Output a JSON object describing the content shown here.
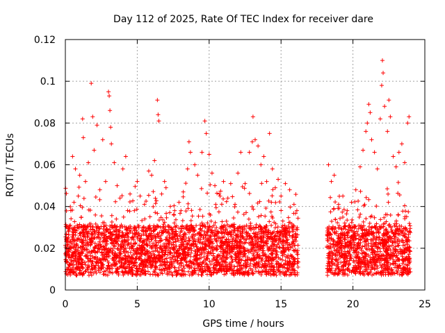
{
  "chart_data": {
    "type": "scatter",
    "title": "Day 112 of 2025, Rate Of TEC Index for receiver dare",
    "xlabel": "GPS time / hours",
    "ylabel": "ROTI / TECUs",
    "xlim": [
      0,
      25
    ],
    "ylim": [
      0,
      0.12
    ],
    "xticks": [
      0,
      5,
      10,
      15,
      20,
      25
    ],
    "xtick_labels": [
      "0",
      "5",
      "10",
      "15",
      "20",
      "25"
    ],
    "yticks": [
      0,
      0.02,
      0.04,
      0.06,
      0.08,
      0.1,
      0.12
    ],
    "ytick_labels": [
      "0",
      "0.02",
      "0.04",
      "0.06",
      "0.08",
      "0.1",
      "0.12"
    ],
    "grid": true,
    "marker": "+",
    "color": "#ff0000",
    "data_gap_hours": [
      16.2,
      18.2
    ],
    "series": [
      {
        "points": [
          [
            0.05,
            0.018
          ],
          [
            0.2,
            0.025
          ],
          [
            0.35,
            0.031
          ],
          [
            0.5,
            0.064
          ],
          [
            0.6,
            0.042
          ],
          [
            0.7,
            0.058
          ],
          [
            0.9,
            0.045
          ],
          [
            1.0,
            0.055
          ],
          [
            1.2,
            0.082
          ],
          [
            1.25,
            0.073
          ],
          [
            1.4,
            0.052
          ],
          [
            1.6,
            0.061
          ],
          [
            1.8,
            0.099
          ],
          [
            1.9,
            0.083
          ],
          [
            2.0,
            0.067
          ],
          [
            2.2,
            0.079
          ],
          [
            2.4,
            0.048
          ],
          [
            2.6,
            0.072
          ],
          [
            2.8,
            0.052
          ],
          [
            3.0,
            0.095
          ],
          [
            3.05,
            0.093
          ],
          [
            3.1,
            0.086
          ],
          [
            3.15,
            0.078
          ],
          [
            3.2,
            0.07
          ],
          [
            3.4,
            0.061
          ],
          [
            3.6,
            0.05
          ],
          [
            3.8,
            0.044
          ],
          [
            4.0,
            0.058
          ],
          [
            4.2,
            0.064
          ],
          [
            4.5,
            0.046
          ],
          [
            4.8,
            0.038
          ],
          [
            5.0,
            0.052
          ],
          [
            5.2,
            0.045
          ],
          [
            5.5,
            0.041
          ],
          [
            5.8,
            0.057
          ],
          [
            6.0,
            0.055
          ],
          [
            6.2,
            0.062
          ],
          [
            6.4,
            0.091
          ],
          [
            6.45,
            0.084
          ],
          [
            6.5,
            0.081
          ],
          [
            6.7,
            0.046
          ],
          [
            6.9,
            0.052
          ],
          [
            7.0,
            0.049
          ],
          [
            7.3,
            0.04
          ],
          [
            7.6,
            0.038
          ],
          [
            7.9,
            0.042
          ],
          [
            8.2,
            0.047
          ],
          [
            8.5,
            0.058
          ],
          [
            8.6,
            0.071
          ],
          [
            8.7,
            0.066
          ],
          [
            9.0,
            0.06
          ],
          [
            9.2,
            0.055
          ],
          [
            9.5,
            0.066
          ],
          [
            9.7,
            0.081
          ],
          [
            9.8,
            0.075
          ],
          [
            10.0,
            0.065
          ],
          [
            10.2,
            0.056
          ],
          [
            10.4,
            0.05
          ],
          [
            10.7,
            0.046
          ],
          [
            11.0,
            0.052
          ],
          [
            11.3,
            0.044
          ],
          [
            11.5,
            0.051
          ],
          [
            11.8,
            0.041
          ],
          [
            12.0,
            0.056
          ],
          [
            12.2,
            0.066
          ],
          [
            12.5,
            0.051
          ],
          [
            12.8,
            0.066
          ],
          [
            13.0,
            0.071
          ],
          [
            13.05,
            0.083
          ],
          [
            13.2,
            0.072
          ],
          [
            13.4,
            0.069
          ],
          [
            13.6,
            0.06
          ],
          [
            13.8,
            0.064
          ],
          [
            14.0,
            0.052
          ],
          [
            14.2,
            0.075
          ],
          [
            14.4,
            0.058
          ],
          [
            14.6,
            0.049
          ],
          [
            14.8,
            0.053
          ],
          [
            15.0,
            0.045
          ],
          [
            15.3,
            0.051
          ],
          [
            15.6,
            0.048
          ],
          [
            15.9,
            0.041
          ],
          [
            16.1,
            0.038
          ],
          [
            18.3,
            0.06
          ],
          [
            18.5,
            0.052
          ],
          [
            18.7,
            0.055
          ],
          [
            19.0,
            0.041
          ],
          [
            19.3,
            0.045
          ],
          [
            19.6,
            0.038
          ],
          [
            19.9,
            0.042
          ],
          [
            20.2,
            0.048
          ],
          [
            20.5,
            0.059
          ],
          [
            20.7,
            0.067
          ],
          [
            20.9,
            0.076
          ],
          [
            21.0,
            0.08
          ],
          [
            21.1,
            0.089
          ],
          [
            21.2,
            0.085
          ],
          [
            21.3,
            0.072
          ],
          [
            21.5,
            0.066
          ],
          [
            21.7,
            0.058
          ],
          [
            21.9,
            0.082
          ],
          [
            22.0,
            0.098
          ],
          [
            22.05,
            0.11
          ],
          [
            22.1,
            0.104
          ],
          [
            22.2,
            0.088
          ],
          [
            22.4,
            0.076
          ],
          [
            22.5,
            0.091
          ],
          [
            22.6,
            0.083
          ],
          [
            22.8,
            0.064
          ],
          [
            23.0,
            0.059
          ],
          [
            23.2,
            0.066
          ],
          [
            23.4,
            0.07
          ],
          [
            23.6,
            0.061
          ],
          [
            23.8,
            0.08
          ],
          [
            23.9,
            0.083
          ]
        ]
      }
    ]
  }
}
